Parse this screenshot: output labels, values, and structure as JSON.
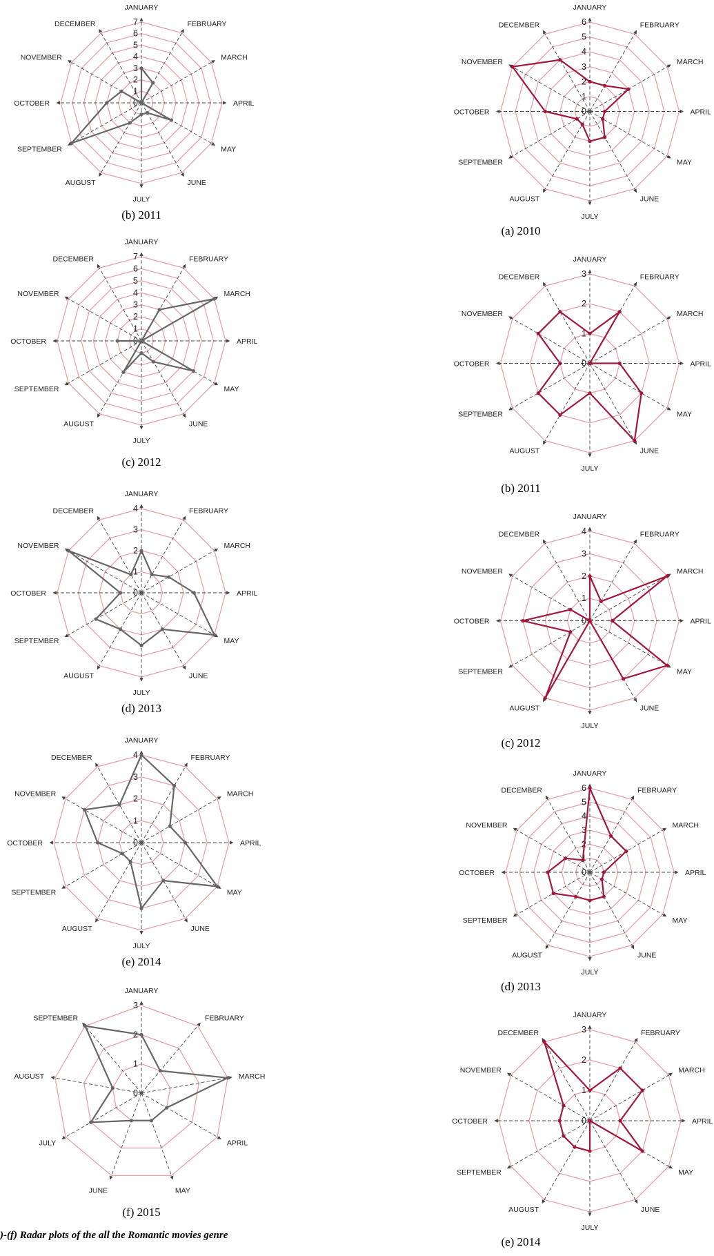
{
  "footer_caption": ")-(f) Radar plots of the all the Romantic movies genre",
  "colors": {
    "left_series": "#666666",
    "right_series": "#a3173c",
    "grid": "#e8a0a8",
    "spoke": "#444444"
  },
  "chart_data": [
    {
      "type": "radar",
      "caption": "(b) 2011",
      "column": "left",
      "categories": [
        "JANUARY",
        "FEBRUARY",
        "MARCH",
        "APRIL",
        "MAY",
        "JUNE",
        "JULY",
        "AUGUST",
        "SEPTEMBER",
        "OCTOBER",
        "NOVEMBER",
        "DECEMBER"
      ],
      "ticks": [
        "0",
        "1",
        "2",
        "3",
        "4",
        "5",
        "6",
        "7"
      ],
      "rmax": 7,
      "values": [
        3,
        2,
        0,
        0,
        3,
        1,
        1,
        2,
        7,
        3,
        2,
        0
      ]
    },
    {
      "type": "radar",
      "caption": "(c) 2012",
      "column": "left",
      "categories": [
        "JANUARY",
        "FEBRUARY",
        "MARCH",
        "APRIL",
        "MAY",
        "JUNE",
        "JULY",
        "AUGUST",
        "SEPTEMBER",
        "OCTOBER",
        "NOVEMBER",
        "DECEMBER"
      ],
      "ticks": [
        "0",
        "1",
        "2",
        "3",
        "4",
        "5",
        "6",
        "7"
      ],
      "rmax": 7,
      "values": [
        0,
        3,
        7,
        0,
        5,
        2,
        1,
        3,
        0,
        2,
        0,
        0
      ]
    },
    {
      "type": "radar",
      "caption": "(d) 2013",
      "column": "left",
      "categories": [
        "JANUARY",
        "FEBRUARY",
        "MARCH",
        "APRIL",
        "MAY",
        "JUNE",
        "JULY",
        "AUGUST",
        "SEPTEMBER",
        "OCTOBER",
        "NOVEMBER",
        "DECEMBER"
      ],
      "ticks": [
        "0",
        "1",
        "2",
        "3",
        "4"
      ],
      "rmax": 4,
      "values": [
        2,
        1,
        1.5,
        2.5,
        4,
        2,
        2.5,
        2,
        2.5,
        1,
        4,
        1
      ]
    },
    {
      "type": "radar",
      "caption": "(e) 2014",
      "column": "left",
      "categories": [
        "JANUARY",
        "FEBRUARY",
        "MARCH",
        "APRIL",
        "MAY",
        "JUNE",
        "JULY",
        "AUGUST",
        "SEPTEMBER",
        "OCTOBER",
        "NOVEMBER",
        "DECEMBER"
      ],
      "ticks": [
        "0",
        "1",
        "2",
        "3",
        "4"
      ],
      "rmax": 4,
      "values": [
        4,
        3,
        1.5,
        2,
        4,
        2,
        3,
        1,
        1,
        2,
        3,
        2
      ]
    },
    {
      "type": "radar",
      "caption": "(f) 2015",
      "column": "left",
      "categories": [
        "JANUARY",
        "FEBRUARY",
        "MARCH",
        "APRIL",
        "MAY",
        "JUNE",
        "JULY",
        "AUGUST",
        "SEPTEMBER"
      ],
      "ticks": [
        "0",
        "1",
        "2",
        "3"
      ],
      "rmax": 3,
      "values": [
        2,
        1,
        3,
        1,
        1,
        1,
        2,
        1,
        3
      ]
    },
    {
      "type": "radar",
      "caption": "(a) 2010",
      "column": "right",
      "categories": [
        "JANUARY",
        "FEBRUARY",
        "MARCH",
        "APRIL",
        "MAY",
        "JUNE",
        "JULY",
        "AUGUST",
        "SEPTEMBER",
        "OCTOBER",
        "NOVEMBER",
        "DECEMBER"
      ],
      "ticks": [
        "0",
        "1",
        "2",
        "3",
        "4",
        "5",
        "6"
      ],
      "rmax": 6,
      "values": [
        2,
        2,
        3,
        1,
        1,
        2,
        2,
        1,
        1,
        3,
        6,
        4
      ]
    },
    {
      "type": "radar",
      "caption": "(b) 2011",
      "column": "right",
      "categories": [
        "JANUARY",
        "FEBRUARY",
        "MARCH",
        "APRIL",
        "MAY",
        "JUNE",
        "JULY",
        "AUGUST",
        "SEPTEMBER",
        "OCTOBER",
        "NOVEMBER",
        "DECEMBER"
      ],
      "ticks": [
        "0",
        "1",
        "2",
        "3"
      ],
      "rmax": 3,
      "values": [
        1,
        2,
        0,
        1,
        2,
        3,
        1,
        2,
        2,
        1,
        2,
        2
      ]
    },
    {
      "type": "radar",
      "caption": "(c) 2012",
      "column": "right",
      "categories": [
        "JANUARY",
        "FEBRUARY",
        "MARCH",
        "APRIL",
        "MAY",
        "JUNE",
        "JULY",
        "AUGUST",
        "SEPTEMBER",
        "OCTOBER",
        "NOVEMBER",
        "DECEMBER"
      ],
      "ticks": [
        "0",
        "1",
        "2",
        "3",
        "4"
      ],
      "rmax": 4,
      "values": [
        2,
        1,
        4,
        1,
        4,
        3,
        0,
        4,
        1,
        3,
        1,
        0
      ]
    },
    {
      "type": "radar",
      "caption": "(d) 2013",
      "column": "right",
      "categories": [
        "JANUARY",
        "FEBRUARY",
        "MARCH",
        "APRIL",
        "MAY",
        "JUNE",
        "JULY",
        "AUGUST",
        "SEPTEMBER",
        "OCTOBER",
        "NOVEMBER",
        "DECEMBER"
      ],
      "ticks": [
        "0",
        "1",
        "2",
        "3",
        "4",
        "5",
        "6"
      ],
      "rmax": 6,
      "values": [
        6,
        3,
        3,
        1,
        1,
        2,
        2,
        2,
        3,
        3,
        2,
        1
      ]
    },
    {
      "type": "radar",
      "caption": "(e) 2014",
      "column": "right",
      "categories": [
        "JANUARY",
        "FEBRUARY",
        "MARCH",
        "APRIL",
        "MAY",
        "JUNE",
        "JULY",
        "AUGUST",
        "SEPTEMBER",
        "OCTOBER",
        "NOVEMBER",
        "DECEMBER"
      ],
      "ticks": [
        "0",
        "1",
        "2",
        "3"
      ],
      "rmax": 3,
      "values": [
        1,
        2,
        2,
        1,
        2,
        0,
        1,
        1,
        1,
        1,
        1,
        3
      ]
    }
  ]
}
